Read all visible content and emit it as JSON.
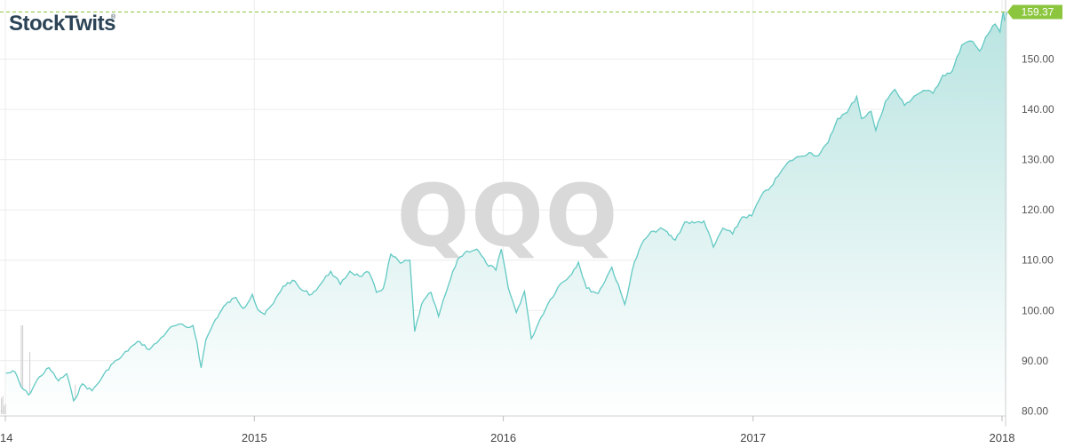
{
  "brand": {
    "name": "StockTwits",
    "registered": "®"
  },
  "chart_data": {
    "type": "area",
    "symbol": "QQQ",
    "last_price": "159.37",
    "ylim": [
      79,
      160
    ],
    "y_ticks": [
      "80.00",
      "90.00",
      "100.00",
      "110.00",
      "120.00",
      "130.00",
      "140.00",
      "150.00"
    ],
    "x_ticks": [
      {
        "label": "14",
        "date": "2014-01-01"
      },
      {
        "label": "2015",
        "date": "2015-01-01"
      },
      {
        "label": "2016",
        "date": "2016-01-01"
      },
      {
        "label": "2017",
        "date": "2017-01-01"
      },
      {
        "label": "2018",
        "date": "2018-01-01"
      }
    ],
    "series": [
      {
        "values": [
          [
            "2014-01-02",
            87.5
          ],
          [
            "2014-01-15",
            87.8
          ],
          [
            "2014-01-24",
            84.8
          ],
          [
            "2014-02-04",
            83.2
          ],
          [
            "2014-02-20",
            86.8
          ],
          [
            "2014-03-06",
            88.6
          ],
          [
            "2014-03-20",
            86.0
          ],
          [
            "2014-04-01",
            87.4
          ],
          [
            "2014-04-11",
            82.0
          ],
          [
            "2014-04-24",
            85.4
          ],
          [
            "2014-05-08",
            84.0
          ],
          [
            "2014-05-22",
            86.5
          ],
          [
            "2014-06-05",
            89.2
          ],
          [
            "2014-06-19",
            90.6
          ],
          [
            "2014-07-03",
            92.6
          ],
          [
            "2014-07-17",
            93.8
          ],
          [
            "2014-07-31",
            92.2
          ],
          [
            "2014-08-14",
            94.0
          ],
          [
            "2014-08-28",
            96.2
          ],
          [
            "2014-09-11",
            97.2
          ],
          [
            "2014-09-25",
            96.6
          ],
          [
            "2014-10-03",
            97.0
          ],
          [
            "2014-10-09",
            93.6
          ],
          [
            "2014-10-15",
            88.6
          ],
          [
            "2014-10-22",
            94.2
          ],
          [
            "2014-11-05",
            98.2
          ],
          [
            "2014-11-20",
            101.2
          ],
          [
            "2014-12-05",
            102.6
          ],
          [
            "2014-12-16",
            100.4
          ],
          [
            "2014-12-29",
            103.2
          ],
          [
            "2015-01-06",
            100.2
          ],
          [
            "2015-01-16",
            99.2
          ],
          [
            "2015-01-29",
            101.4
          ],
          [
            "2015-02-12",
            104.8
          ],
          [
            "2015-02-26",
            106.0
          ],
          [
            "2015-03-12",
            104.0
          ],
          [
            "2015-03-26",
            103.2
          ],
          [
            "2015-04-09",
            105.4
          ],
          [
            "2015-04-23",
            107.8
          ],
          [
            "2015-05-07",
            105.2
          ],
          [
            "2015-05-21",
            107.8
          ],
          [
            "2015-06-04",
            106.8
          ],
          [
            "2015-06-18",
            107.6
          ],
          [
            "2015-06-29",
            103.6
          ],
          [
            "2015-07-09",
            104.4
          ],
          [
            "2015-07-20",
            111.2
          ],
          [
            "2015-08-03",
            109.4
          ],
          [
            "2015-08-17",
            110.0
          ],
          [
            "2015-08-24",
            95.8
          ],
          [
            "2015-09-03",
            101.2
          ],
          [
            "2015-09-17",
            103.6
          ],
          [
            "2015-09-28",
            98.8
          ],
          [
            "2015-10-12",
            104.8
          ],
          [
            "2015-10-26",
            110.2
          ],
          [
            "2015-11-09",
            111.8
          ],
          [
            "2015-11-23",
            112.2
          ],
          [
            "2015-12-07",
            109.4
          ],
          [
            "2015-12-21",
            108.0
          ],
          [
            "2015-12-29",
            112.2
          ],
          [
            "2016-01-08",
            104.6
          ],
          [
            "2016-01-20",
            99.6
          ],
          [
            "2016-02-01",
            103.8
          ],
          [
            "2016-02-11",
            94.4
          ],
          [
            "2016-02-25",
            98.6
          ],
          [
            "2016-03-10",
            102.2
          ],
          [
            "2016-03-24",
            105.2
          ],
          [
            "2016-04-07",
            106.8
          ],
          [
            "2016-04-20",
            109.6
          ],
          [
            "2016-05-02",
            104.4
          ],
          [
            "2016-05-19",
            103.4
          ],
          [
            "2016-06-08",
            108.6
          ],
          [
            "2016-06-27",
            101.2
          ],
          [
            "2016-07-11",
            109.6
          ],
          [
            "2016-07-25",
            114.0
          ],
          [
            "2016-08-08",
            115.8
          ],
          [
            "2016-08-22",
            116.2
          ],
          [
            "2016-09-09",
            114.0
          ],
          [
            "2016-09-23",
            117.6
          ],
          [
            "2016-10-07",
            117.4
          ],
          [
            "2016-10-21",
            117.8
          ],
          [
            "2016-11-04",
            112.6
          ],
          [
            "2016-11-18",
            116.4
          ],
          [
            "2016-12-02",
            115.2
          ],
          [
            "2016-12-16",
            118.6
          ],
          [
            "2016-12-30",
            118.8
          ],
          [
            "2017-01-13",
            122.8
          ],
          [
            "2017-01-27",
            124.6
          ],
          [
            "2017-02-10",
            127.4
          ],
          [
            "2017-02-24",
            129.8
          ],
          [
            "2017-03-10",
            130.6
          ],
          [
            "2017-03-24",
            131.4
          ],
          [
            "2017-04-07",
            130.8
          ],
          [
            "2017-04-21",
            133.4
          ],
          [
            "2017-05-05",
            138.2
          ],
          [
            "2017-05-19",
            139.4
          ],
          [
            "2017-06-02",
            142.6
          ],
          [
            "2017-06-09",
            138.2
          ],
          [
            "2017-06-23",
            139.6
          ],
          [
            "2017-06-30",
            135.8
          ],
          [
            "2017-07-14",
            141.6
          ],
          [
            "2017-07-28",
            144.0
          ],
          [
            "2017-08-11",
            140.8
          ],
          [
            "2017-08-25",
            142.6
          ],
          [
            "2017-09-08",
            143.8
          ],
          [
            "2017-09-22",
            143.2
          ],
          [
            "2017-10-06",
            146.8
          ],
          [
            "2017-10-20",
            147.6
          ],
          [
            "2017-11-03",
            152.8
          ],
          [
            "2017-11-17",
            153.6
          ],
          [
            "2017-11-29",
            151.6
          ],
          [
            "2017-12-08",
            154.4
          ],
          [
            "2017-12-22",
            157.0
          ],
          [
            "2017-12-29",
            155.4
          ],
          [
            "2018-01-03",
            159.4
          ],
          [
            "2018-01-05",
            157.6
          ],
          [
            "2018-01-08",
            159.37
          ]
        ]
      }
    ],
    "volume": {
      "ylim": [
        0,
        100
      ],
      "values": []
    },
    "grid": true,
    "colors": {
      "line": "#62c9c3",
      "fill_top": "#b9e4e1",
      "fill_bottom": "#ffffff",
      "volume": "#d2d2d2",
      "last_marker": "#8cc63f",
      "grid": "#ececec"
    }
  }
}
